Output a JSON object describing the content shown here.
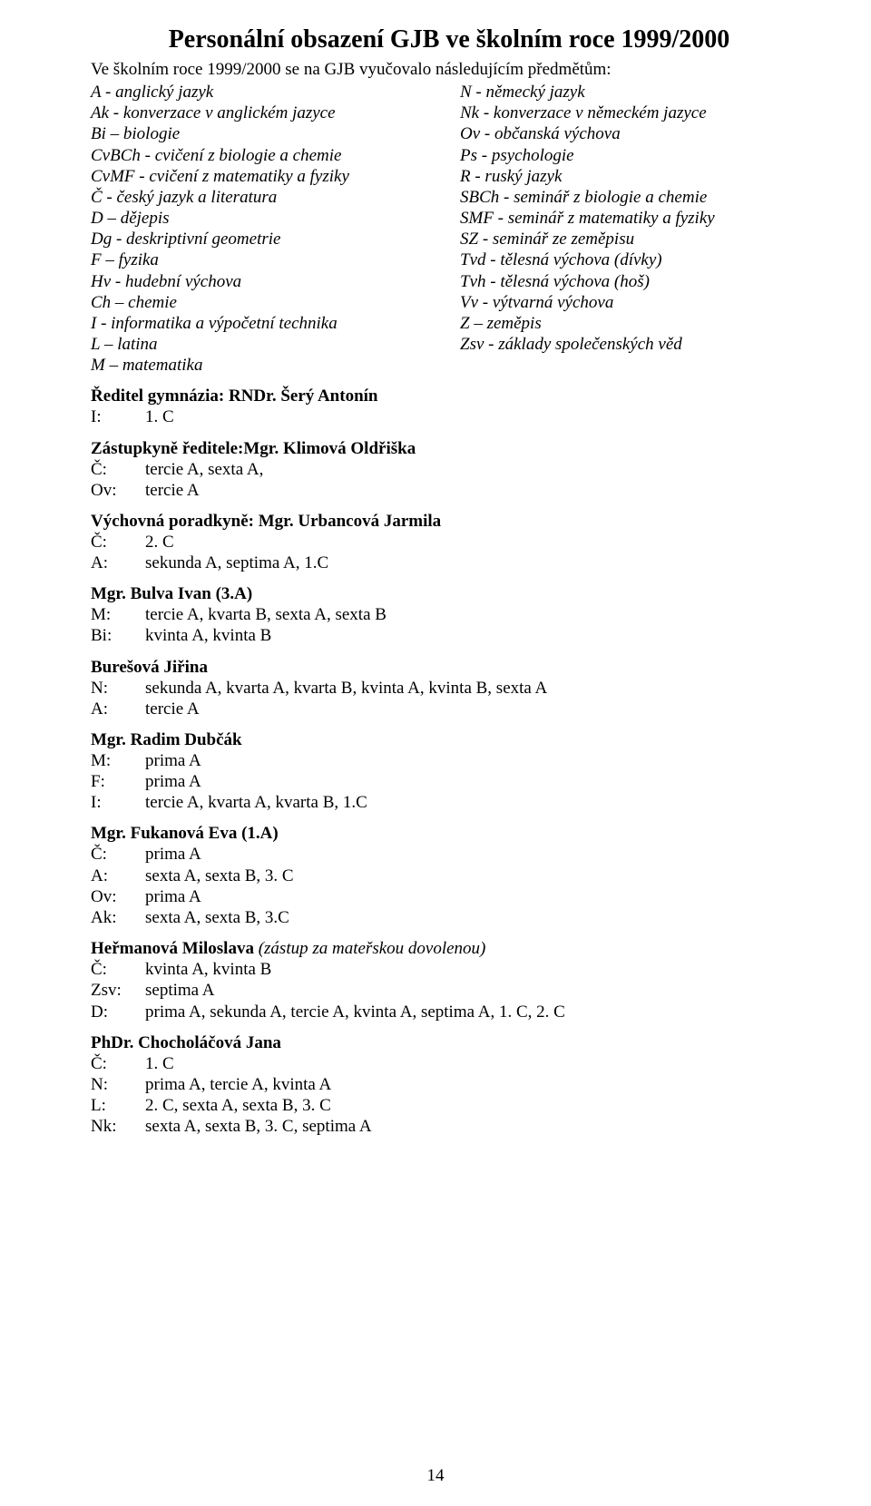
{
  "title": "Personální obsazení GJB ve školním roce 1999/2000",
  "intro": "Ve školním roce 1999/2000 se na GJB vyučovalo následujícím předmětům:",
  "left_defs": [
    "A - anglický jazyk",
    "Ak - konverzace v anglickém jazyce",
    "Bi – biologie",
    "CvBCh - cvičení z biologie a chemie",
    "CvMF - cvičení z matematiky a fyziky",
    "Č - český jazyk a literatura",
    "D – dějepis",
    "Dg - deskriptivní geometrie",
    "F – fyzika",
    "Hv - hudební výchova",
    "Ch – chemie",
    "I - informatika a výpočetní technika",
    "L – latina",
    "M – matematika"
  ],
  "right_defs": [
    "N - německý jazyk",
    "Nk - konverzace v německém jazyce",
    "Ov - občanská výchova",
    "Ps - psychologie",
    "R - ruský jazyk",
    "SBCh - seminář z biologie a chemie",
    "SMF - seminář z matematiky a fyziky",
    "SZ - seminář ze zeměpisu",
    "Tvd - tělesná výchova (dívky)",
    "Tvh - tělesná výchova (hoš)",
    "Vv - výtvarná výchova",
    "Z – zeměpis",
    "Zsv - základy společenských věd"
  ],
  "sections": [
    {
      "head": "Ředitel gymnázia: RNDr. Šerý Antonín",
      "note": "",
      "rows": [
        {
          "lbl": "I:",
          "val": "1. C"
        }
      ]
    },
    {
      "head": "Zástupkyně ředitele:Mgr. Klimová Oldřiška",
      "note": "",
      "rows": [
        {
          "lbl": "Č:",
          "val": "tercie A, sexta A,"
        },
        {
          "lbl": "Ov:",
          "val": "tercie A"
        }
      ]
    },
    {
      "head": "Výchovná poradkyně: Mgr. Urbancová Jarmila",
      "note": "",
      "rows": [
        {
          "lbl": "Č:",
          "val": "2. C"
        },
        {
          "lbl": "A:",
          "val": "sekunda A, septima A, 1.C"
        }
      ]
    },
    {
      "head": "Mgr. Bulva Ivan (3.A)",
      "note": "",
      "rows": [
        {
          "lbl": "M:",
          "val": "tercie A, kvarta B, sexta A, sexta B"
        },
        {
          "lbl": "Bi:",
          "val": "kvinta A, kvinta B"
        }
      ]
    },
    {
      "head": "Burešová Jiřina",
      "note": "",
      "rows": [
        {
          "lbl": "N:",
          "val": "sekunda A, kvarta A, kvarta B, kvinta A, kvinta B, sexta A"
        },
        {
          "lbl": "A:",
          "val": "tercie A"
        }
      ]
    },
    {
      "head": "Mgr. Radim Dubčák",
      "note": "",
      "rows": [
        {
          "lbl": "M:",
          "val": "prima A"
        },
        {
          "lbl": "F:",
          "val": "prima A"
        },
        {
          "lbl": "I:",
          "val": "tercie A, kvarta A, kvarta B, 1.C"
        }
      ]
    },
    {
      "head": "Mgr. Fukanová Eva (1.A)",
      "note": "",
      "rows": [
        {
          "lbl": "Č:",
          "val": "prima A"
        },
        {
          "lbl": "A:",
          "val": "sexta A, sexta B, 3. C"
        },
        {
          "lbl": "Ov:",
          "val": "prima A"
        },
        {
          "lbl": "Ak:",
          "val": "sexta A, sexta B, 3.C"
        }
      ]
    },
    {
      "head": "Heřmanová Miloslava",
      "note": " (zástup za mateřskou dovolenou)",
      "rows": [
        {
          "lbl": "Č:",
          "val": "kvinta A, kvinta B"
        },
        {
          "lbl": "Zsv:",
          "val": "septima A"
        },
        {
          "lbl": "D:",
          "val": "prima A, sekunda A, tercie A, kvinta A, septima A, 1. C, 2. C"
        }
      ]
    },
    {
      "head": "PhDr. Chocholáčová Jana",
      "note": "",
      "rows": [
        {
          "lbl": "Č:",
          "val": "1. C"
        },
        {
          "lbl": "N:",
          "val": "prima A, tercie A, kvinta A"
        },
        {
          "lbl": "L:",
          "val": "2. C, sexta A, sexta B, 3. C"
        },
        {
          "lbl": "Nk:",
          "val": "sexta A, sexta B, 3. C, septima A"
        }
      ]
    }
  ],
  "page_number": "14"
}
